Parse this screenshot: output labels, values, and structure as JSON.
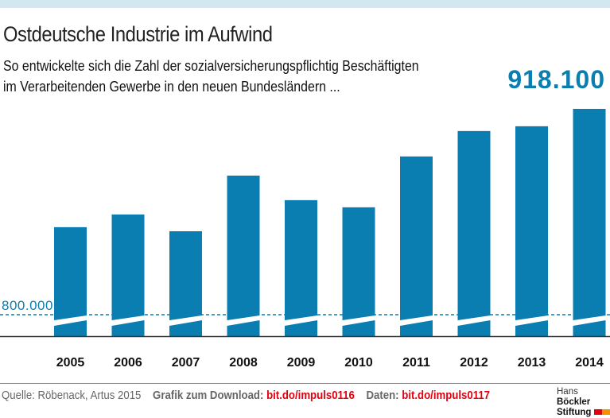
{
  "title": "Ostdeutsche Industrie im Aufwind",
  "subtitle_line1": "So entwickelte sich die Zahl der sozialversicherungspflichtig Beschäftigten",
  "subtitle_line2": "im Verarbeitenden Gewerbe in den neuen Bundesländern ...",
  "highlight_value": "918.100",
  "baseline_label": "800.000",
  "colors": {
    "bar": "#0a7eb0",
    "accent": "#e3000f"
  },
  "chart_data": {
    "type": "bar",
    "title": "Ostdeutsche Industrie im Aufwind",
    "categories": [
      "2005",
      "2006",
      "2007",
      "2008",
      "2009",
      "2010",
      "2011",
      "2012",
      "2013",
      "2014"
    ],
    "values": [
      850200,
      857500,
      847900,
      879800,
      865700,
      861600,
      890800,
      905400,
      908100,
      918100
    ],
    "axis_break": true,
    "reference_line": 800000,
    "grid": false
  },
  "footer": {
    "source": "Quelle: Röbenack, Artus 2015",
    "download_label": "Grafik zum Download:",
    "download_link": "bit.do/impuls0116",
    "data_label": "Daten:",
    "data_link": "bit.do/impuls0117",
    "logo_line1a": "Hans",
    "logo_line1b": "Böckler",
    "logo_line2": "Stiftung"
  }
}
